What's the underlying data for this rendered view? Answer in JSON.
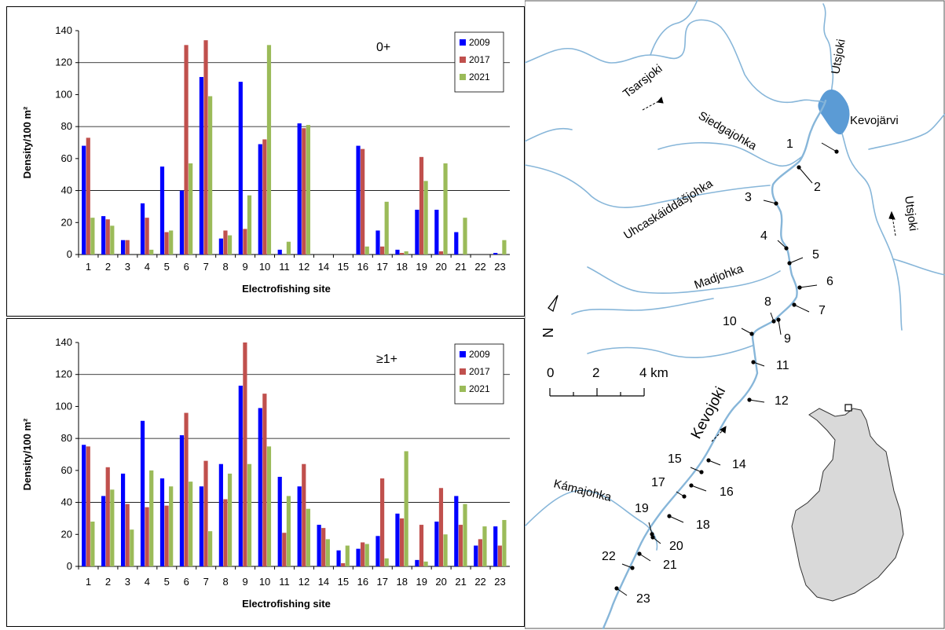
{
  "chart_data": [
    {
      "type": "bar",
      "label": "0+",
      "xlabel": "Electrofishing site",
      "ylabel": "Density/100 m²",
      "ylim": [
        0,
        140
      ],
      "yticks": [
        0,
        20,
        40,
        60,
        80,
        100,
        120,
        140
      ],
      "gridlines": [
        40,
        80,
        120
      ],
      "legend_position": "top-right",
      "categories": [
        "1",
        "2",
        "3",
        "4",
        "5",
        "6",
        "7",
        "8",
        "9",
        "10",
        "11",
        "12",
        "14",
        "15",
        "16",
        "17",
        "18",
        "19",
        "20",
        "21",
        "22",
        "23"
      ],
      "series": [
        {
          "name": "2009",
          "color": "#0000ff",
          "values": [
            68,
            24,
            9,
            32,
            55,
            40,
            111,
            10,
            108,
            69,
            3,
            82,
            0,
            0,
            68,
            15,
            3,
            28,
            28,
            14,
            0,
            1
          ]
        },
        {
          "name": "2017",
          "color": "#c0504d",
          "values": [
            73,
            22,
            9,
            23,
            14,
            131,
            134,
            15,
            16,
            72,
            0,
            79,
            0,
            0,
            66,
            5,
            1,
            61,
            2,
            0,
            0,
            0
          ]
        },
        {
          "name": "2021",
          "color": "#9bbb59",
          "values": [
            23,
            18,
            0,
            3,
            15,
            57,
            99,
            12,
            37,
            131,
            8,
            81,
            0,
            0,
            5,
            33,
            2,
            46,
            57,
            23,
            0,
            9
          ]
        }
      ]
    },
    {
      "type": "bar",
      "label": "≥1+",
      "xlabel": "Electrofishing site",
      "ylabel": "Density/100 m²",
      "ylim": [
        0,
        140
      ],
      "yticks": [
        0,
        20,
        40,
        60,
        80,
        100,
        120,
        140
      ],
      "gridlines": [
        40,
        80,
        120
      ],
      "legend_position": "top-right",
      "categories": [
        "1",
        "2",
        "3",
        "4",
        "5",
        "6",
        "7",
        "8",
        "9",
        "10",
        "11",
        "12",
        "14",
        "15",
        "16",
        "17",
        "18",
        "19",
        "20",
        "21",
        "22",
        "23"
      ],
      "series": [
        {
          "name": "2009",
          "color": "#0000ff",
          "values": [
            76,
            44,
            58,
            91,
            55,
            82,
            50,
            64,
            113,
            99,
            56,
            50,
            26,
            10,
            11,
            19,
            33,
            4,
            28,
            44,
            13,
            25
          ]
        },
        {
          "name": "2017",
          "color": "#c0504d",
          "values": [
            75,
            62,
            39,
            37,
            38,
            96,
            66,
            42,
            140,
            108,
            21,
            64,
            24,
            2,
            15,
            55,
            30,
            26,
            49,
            26,
            17,
            13
          ]
        },
        {
          "name": "2021",
          "color": "#9bbb59",
          "values": [
            28,
            48,
            23,
            60,
            50,
            53,
            22,
            58,
            64,
            75,
            44,
            36,
            17,
            13,
            14,
            5,
            72,
            3,
            20,
            39,
            25,
            29
          ]
        }
      ]
    }
  ],
  "map": {
    "rivers": [
      "Tsarsjoki",
      "Utsjoki",
      "Kevojärvi",
      "Siedgajohka",
      "Uhcaskáiddášjohka",
      "Madjohka",
      "Kevojoki",
      "Kámajohka",
      "Utsjoki"
    ],
    "scale": {
      "labels": [
        "0",
        "2",
        "4 km"
      ]
    },
    "north_label": "N",
    "sites": [
      "1",
      "2",
      "3",
      "4",
      "5",
      "6",
      "7",
      "8",
      "9",
      "10",
      "11",
      "12",
      "14",
      "15",
      "16",
      "17",
      "18",
      "19",
      "20",
      "21",
      "22",
      "23"
    ]
  }
}
